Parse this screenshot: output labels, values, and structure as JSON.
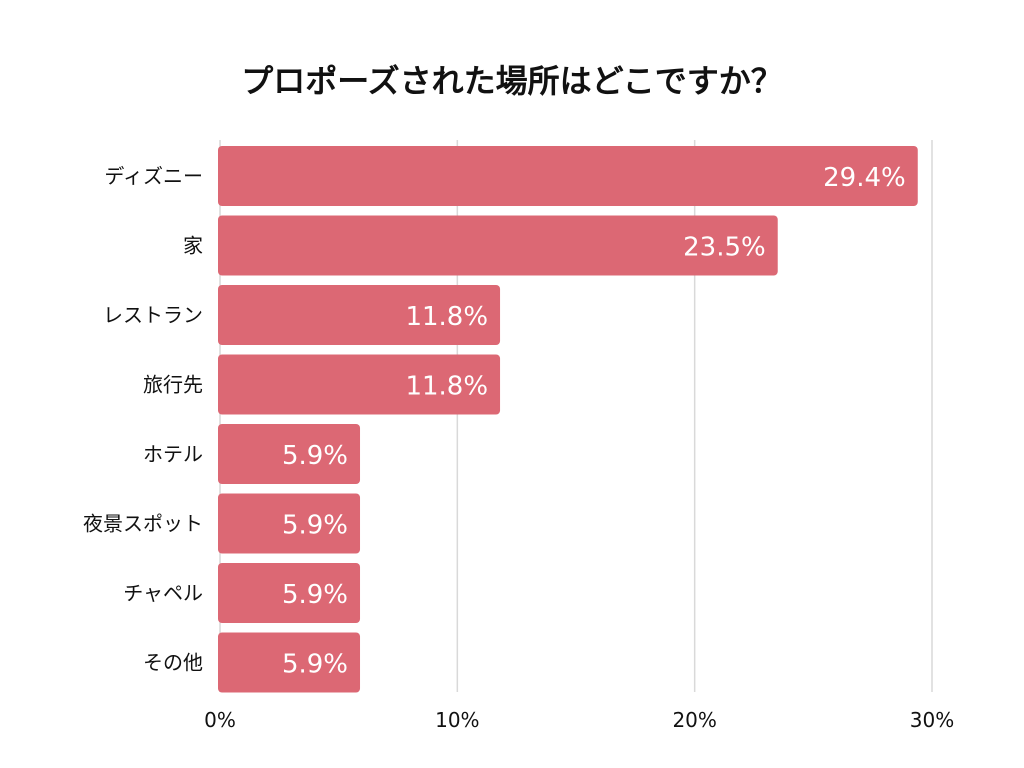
{
  "chart_data": {
    "type": "bar",
    "orientation": "horizontal",
    "title": "プロポーズされた場所はどこですか？",
    "categories": [
      "ディズニー",
      "家",
      "レストラン",
      "旅行先",
      "ホテル",
      "夜景スポット",
      "チャペル",
      "その他"
    ],
    "values": [
      29.4,
      23.5,
      11.8,
      11.8,
      5.9,
      5.9,
      5.9,
      5.9
    ],
    "value_labels": [
      "29.4%",
      "23.5%",
      "11.8%",
      "11.8%",
      "5.9%",
      "5.9%",
      "5.9%",
      "5.9%"
    ],
    "xlim": [
      0,
      30
    ],
    "xticks": [
      0,
      10,
      20,
      30
    ],
    "xtick_labels": [
      "0%",
      "10%",
      "20%",
      "30%"
    ],
    "xlabel": "",
    "ylabel": "",
    "grid": true,
    "bar_color": "#dc6874",
    "grid_color": "#d9d9d9",
    "label_color": "#ffffff"
  }
}
